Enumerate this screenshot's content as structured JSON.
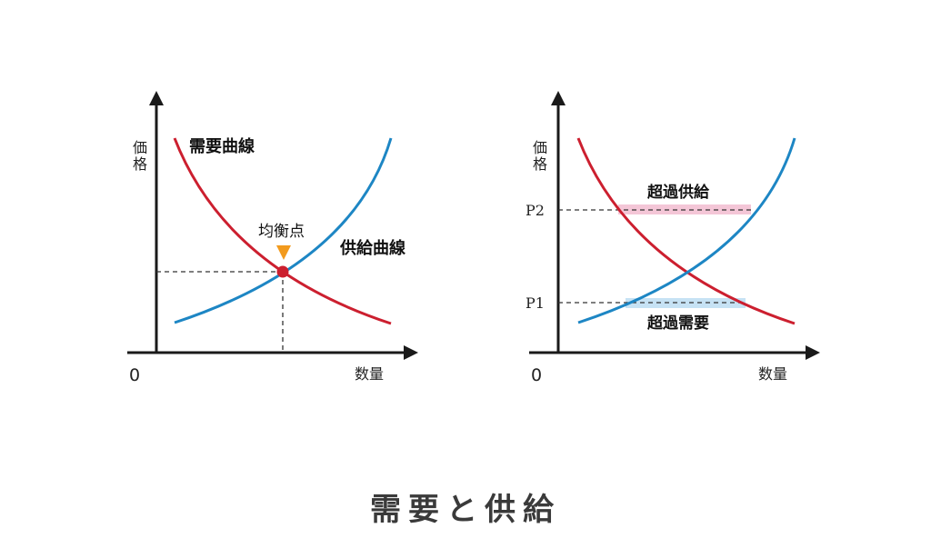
{
  "title": "需要と供給",
  "colors": {
    "demand": "#cc1f2f",
    "supply": "#1d86c4",
    "equilibrium_marker": "#f29a1d",
    "excess_supply_band": "#f4c6d7",
    "excess_demand_band": "#c6e2f4",
    "axis": "#1a1a1a"
  },
  "left_chart": {
    "y_axis_label": "価格",
    "x_axis_label": "数量",
    "origin_label": "0",
    "demand_label": "需要曲線",
    "supply_label": "供給曲線",
    "equilibrium_label": "均衡点"
  },
  "right_chart": {
    "y_axis_label": "価格",
    "x_axis_label": "数量",
    "origin_label": "0",
    "price_high_label": "P2",
    "price_low_label": "P1",
    "excess_supply_label": "超過供給",
    "excess_demand_label": "超過需要"
  }
}
